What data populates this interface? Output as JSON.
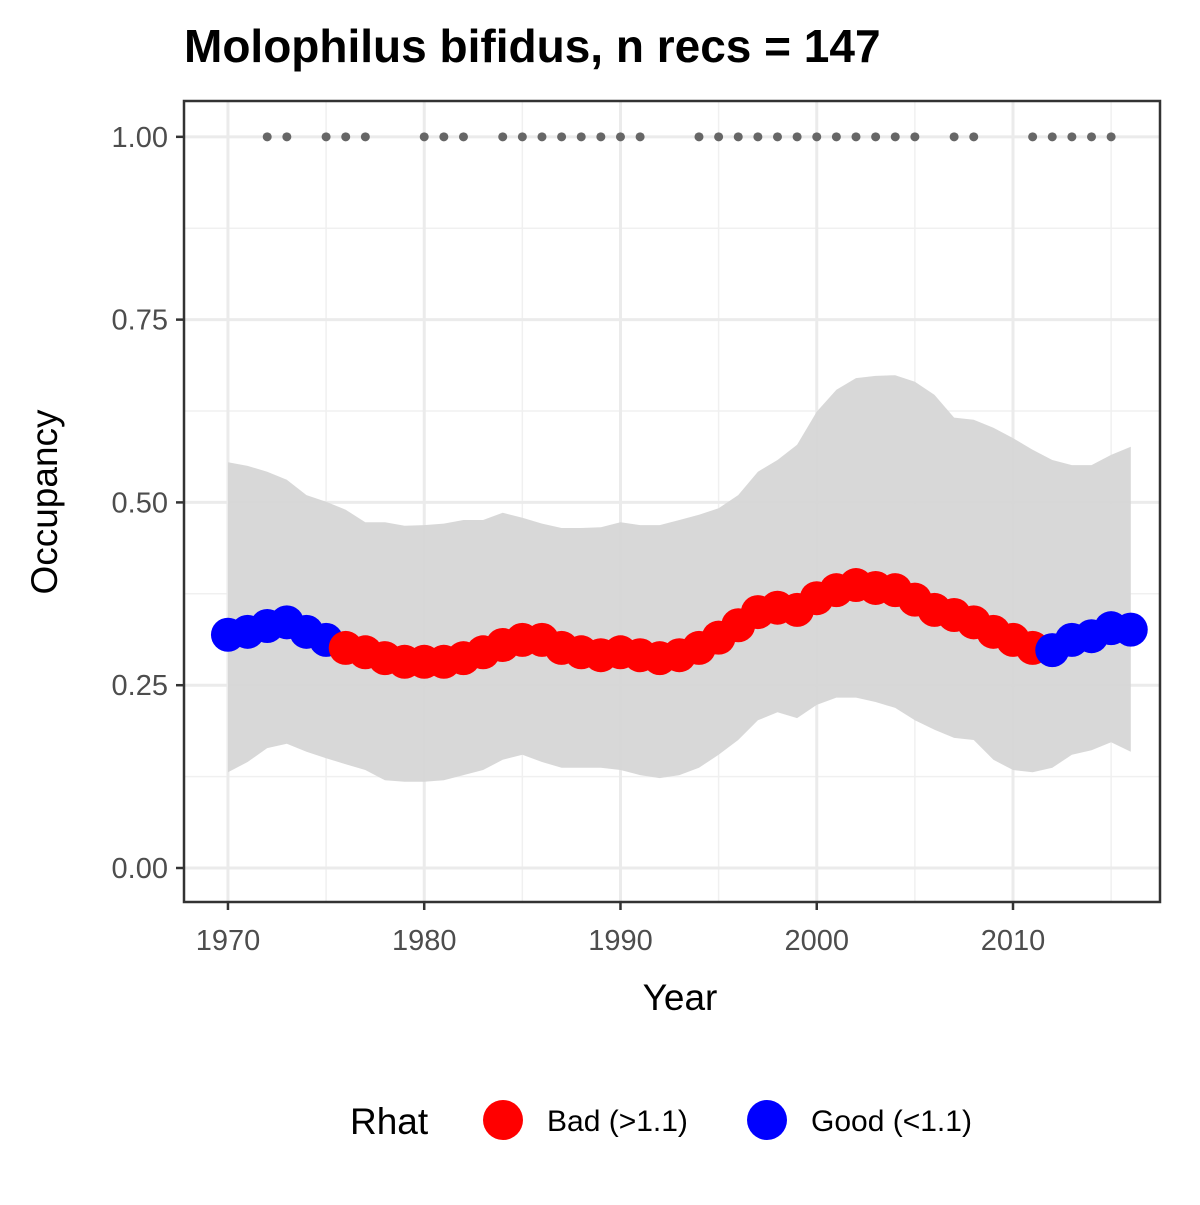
{
  "chart_data": {
    "type": "occupancy",
    "title": "Molophilus bifidus, n recs = 147",
    "xlabel": "Year",
    "ylabel": "Occupancy",
    "legend_title": "Rhat",
    "x": [
      1970,
      1971,
      1972,
      1973,
      1974,
      1975,
      1976,
      1977,
      1978,
      1979,
      1980,
      1981,
      1982,
      1983,
      1984,
      1985,
      1986,
      1987,
      1988,
      1989,
      1990,
      1991,
      1992,
      1993,
      1994,
      1995,
      1996,
      1997,
      1998,
      1999,
      2000,
      2001,
      2002,
      2003,
      2004,
      2005,
      2006,
      2007,
      2008,
      2009,
      2010,
      2011,
      2012,
      2013,
      2014,
      2015,
      2016
    ],
    "series": [
      {
        "name": "Bad (>1.1)",
        "color": "#ff0000",
        "values": [
          null,
          null,
          null,
          null,
          null,
          null,
          0.301,
          0.295,
          0.287,
          0.282,
          0.282,
          0.282,
          0.287,
          0.295,
          0.305,
          0.312,
          0.312,
          0.301,
          0.295,
          0.291,
          0.295,
          0.291,
          0.287,
          0.291,
          0.301,
          0.315,
          0.332,
          0.35,
          0.356,
          0.353,
          0.369,
          0.38,
          0.387,
          0.383,
          0.38,
          0.367,
          0.353,
          0.346,
          0.336,
          0.323,
          0.312,
          0.301,
          null,
          null,
          null,
          null,
          null
        ]
      },
      {
        "name": "Good (<1.1)",
        "color": "#0000ff",
        "values": [
          0.319,
          0.323,
          0.331,
          0.336,
          0.323,
          0.312,
          null,
          null,
          null,
          null,
          null,
          null,
          null,
          null,
          null,
          null,
          null,
          null,
          null,
          null,
          null,
          null,
          null,
          null,
          null,
          null,
          null,
          null,
          null,
          null,
          null,
          null,
          null,
          null,
          null,
          null,
          null,
          null,
          null,
          null,
          null,
          null,
          0.298,
          0.312,
          0.317,
          0.328,
          0.326
        ]
      }
    ],
    "band_color": "#d6d6d6",
    "band_upper": [
      0.555,
      0.55,
      0.542,
      0.531,
      0.51,
      0.501,
      0.49,
      0.473,
      0.473,
      0.468,
      0.469,
      0.471,
      0.476,
      0.476,
      0.486,
      0.479,
      0.471,
      0.465,
      0.465,
      0.466,
      0.473,
      0.469,
      0.469,
      0.476,
      0.483,
      0.492,
      0.51,
      0.542,
      0.558,
      0.579,
      0.624,
      0.654,
      0.67,
      0.673,
      0.674,
      0.665,
      0.647,
      0.616,
      0.613,
      0.602,
      0.588,
      0.572,
      0.558,
      0.551,
      0.551,
      0.565,
      0.576
    ],
    "band_lower": [
      0.131,
      0.145,
      0.164,
      0.17,
      0.159,
      0.15,
      0.142,
      0.134,
      0.12,
      0.118,
      0.118,
      0.12,
      0.127,
      0.134,
      0.148,
      0.155,
      0.145,
      0.137,
      0.137,
      0.137,
      0.134,
      0.127,
      0.123,
      0.127,
      0.137,
      0.155,
      0.175,
      0.202,
      0.213,
      0.205,
      0.223,
      0.233,
      0.233,
      0.227,
      0.219,
      0.202,
      0.189,
      0.178,
      0.175,
      0.148,
      0.134,
      0.131,
      0.137,
      0.155,
      0.161,
      0.172,
      0.159
    ],
    "detections": {
      "color": "#666666",
      "x": [
        1972,
        1973,
        1975,
        1976,
        1977,
        1980,
        1981,
        1982,
        1984,
        1985,
        1986,
        1987,
        1988,
        1989,
        1990,
        1991,
        1994,
        1995,
        1996,
        1997,
        1998,
        1999,
        2000,
        2001,
        2002,
        2003,
        2004,
        2005,
        2007,
        2008,
        2011,
        2012,
        2013,
        2014,
        2015
      ],
      "values": [
        1,
        1,
        1,
        1,
        1,
        1,
        1,
        1,
        1,
        1,
        1,
        1,
        1,
        1,
        1,
        1,
        1,
        1,
        1,
        1,
        1,
        1,
        1,
        1,
        1,
        1,
        1,
        1,
        1,
        1,
        1,
        1,
        1,
        1,
        1
      ]
    },
    "xlim": [
      1967.76,
      2017.49
    ],
    "ylim": [
      -0.0465,
      1.049
    ],
    "xticks": [
      1970,
      1980,
      1990,
      2000,
      2010
    ],
    "yticks": [
      {
        "value": 0,
        "label": "0.00"
      },
      {
        "value": 0.25,
        "label": "0.25"
      },
      {
        "value": 0.5,
        "label": "0.50"
      },
      {
        "value": 0.75,
        "label": "0.75"
      },
      {
        "value": 1,
        "label": "1.00"
      }
    ],
    "x_minor_ticks": [
      1975,
      1985,
      1995,
      2005,
      2015
    ],
    "y_minor_ticks": [
      0.125,
      0.375,
      0.625,
      0.875
    ],
    "grid": true
  }
}
